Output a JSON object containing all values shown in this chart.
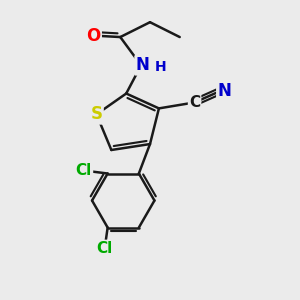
{
  "bg_color": "#ebebeb",
  "bond_color": "#1a1a1a",
  "bond_width": 1.8,
  "atom_colors": {
    "O": "#ff0000",
    "N": "#0000cc",
    "S": "#cccc00",
    "Cl": "#00aa00",
    "C": "#1a1a1a"
  },
  "font_size": 10,
  "fig_size": [
    3.0,
    3.0
  ],
  "dpi": 100
}
